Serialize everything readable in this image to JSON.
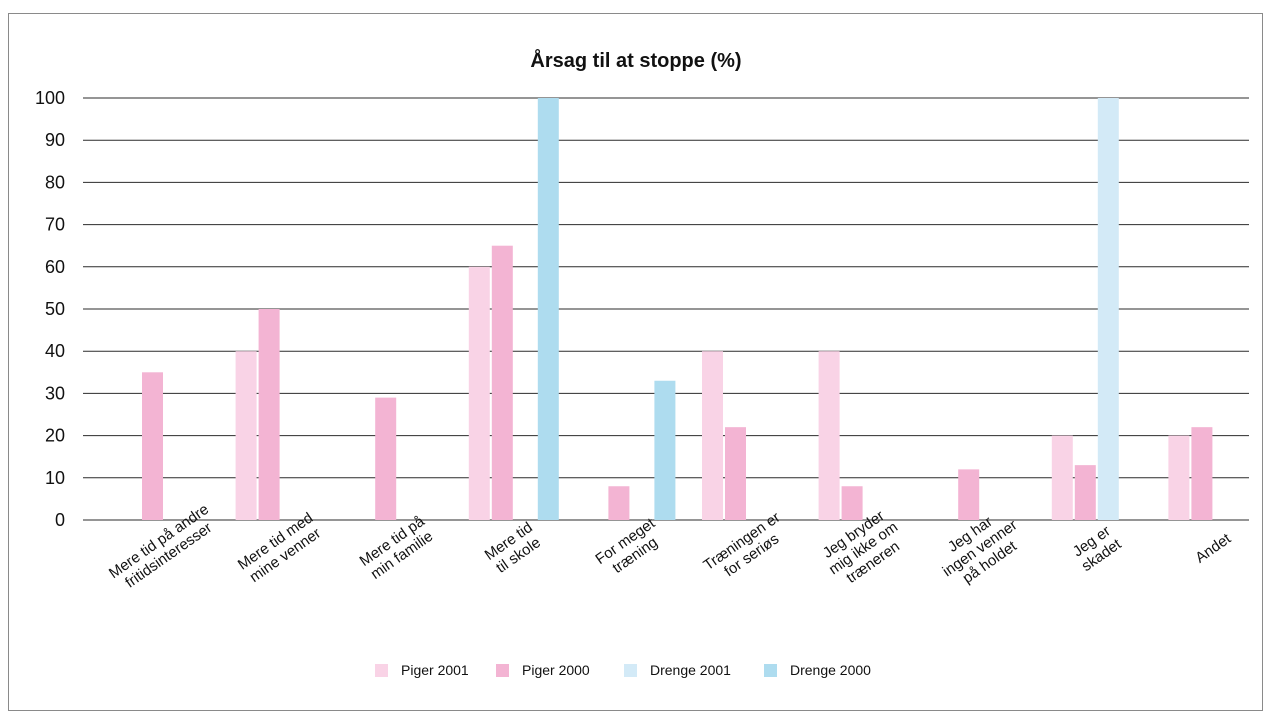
{
  "chart_data": {
    "type": "bar",
    "title": "Årsag til at stoppe (%)",
    "xlabel": "",
    "ylabel": "",
    "ylim": [
      0,
      100
    ],
    "yticks": [
      "0",
      "10",
      "20",
      "30",
      "40",
      "50",
      "60",
      "70",
      "80",
      "90",
      "100"
    ],
    "grid": true,
    "legend_position": "bottom",
    "categories": [
      [
        "Mere tid på andre",
        "fritidsinteresser"
      ],
      [
        "Mere tid med",
        "mine venner"
      ],
      [
        "Mere tid på",
        "min familie"
      ],
      [
        "Mere tid",
        "til skole"
      ],
      [
        "For meget",
        "træning"
      ],
      [
        "Træningen er",
        "for seriøs"
      ],
      [
        "Jeg bryder",
        "mig ikke om",
        "træneren"
      ],
      [
        "Jeg har",
        "ingen venner",
        "på holdet"
      ],
      [
        "Jeg er",
        "skadet"
      ],
      [
        "Andet"
      ]
    ],
    "series": [
      {
        "name": "Piger 2001",
        "color": "#f9d3e6",
        "values": [
          null,
          40,
          null,
          60,
          null,
          40,
          40,
          null,
          20,
          20
        ]
      },
      {
        "name": "Piger 2000",
        "color": "#f3b4d3",
        "values": [
          35,
          50,
          29,
          65,
          8,
          22,
          8,
          12,
          13,
          22
        ]
      },
      {
        "name": "Drenge 2001",
        "color": "#d3eaf7",
        "values": [
          null,
          null,
          null,
          null,
          null,
          null,
          null,
          null,
          100,
          null
        ]
      },
      {
        "name": "Drenge 2000",
        "color": "#aedcef",
        "values": [
          null,
          null,
          null,
          100,
          33,
          null,
          null,
          null,
          null,
          null
        ]
      }
    ]
  }
}
